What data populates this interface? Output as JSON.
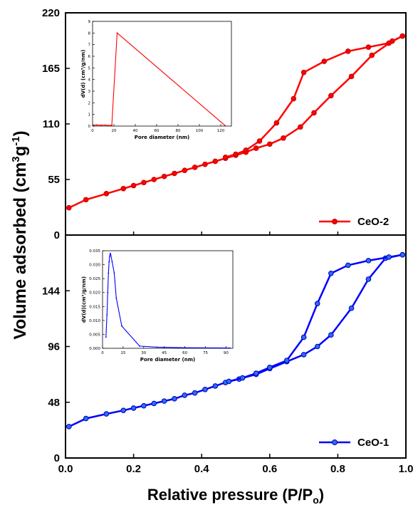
{
  "chart_data": {
    "type": "line",
    "xlabel": "Relative pressure (P/P",
    "xlabel_sub": "o",
    "xlabel_end": ")",
    "ylabel": "Volume adsorbed (cm",
    "ylabel_sup1": "3",
    "ylabel_mid": "g",
    "ylabel_sup2": "-1",
    "ylabel_end": ")",
    "x_ticks": [
      "0.0",
      "0.2",
      "0.4",
      "0.6",
      "0.8",
      "1.0"
    ],
    "xlim": [
      0,
      1.0
    ],
    "panels": [
      {
        "id": "top",
        "legend": "CeO-2",
        "color": "#ff0000",
        "ylim": [
          0,
          220
        ],
        "y_ticks": [
          "0",
          "55",
          "110",
          "165",
          "220"
        ],
        "series": [
          {
            "x": [
              0.01,
              0.06,
              0.12,
              0.17,
              0.2,
              0.23,
              0.26,
              0.29,
              0.32,
              0.35,
              0.38,
              0.41,
              0.44,
              0.47,
              0.5,
              0.53,
              0.56,
              0.6,
              0.64,
              0.69,
              0.73,
              0.78,
              0.84,
              0.9,
              0.96,
              0.99
            ],
            "y": [
              27,
              35,
              41,
              46,
              49,
              52,
              55,
              58,
              61,
              64,
              67,
              70,
              73,
              76,
              79,
              82,
              86,
              90,
              96,
              107,
              121,
              138,
              157,
              178,
              192,
              197
            ]
          },
          {
            "x": [
              0.99,
              0.95,
              0.89,
              0.83,
              0.76,
              0.7,
              0.67,
              0.62,
              0.57,
              0.53,
              0.5,
              0.47
            ],
            "y": [
              197,
              190,
              186,
              182,
              172,
              161,
              135,
              111,
              93,
              84,
              80,
              77
            ]
          }
        ],
        "inset": {
          "xlabel": "Pore diameter (nm)",
          "ylabel": "dV(d) (cm³/g/nm)",
          "xlim": [
            0,
            130
          ],
          "ylim": [
            0,
            9
          ],
          "x_ticks": [
            "0",
            "20",
            "40",
            "60",
            "80",
            "100",
            "120"
          ],
          "y_ticks": [
            "0",
            "1",
            "2",
            "3",
            "4",
            "5",
            "6",
            "7",
            "8",
            "9"
          ],
          "x": [
            1,
            4,
            8,
            12,
            15,
            17,
            18,
            23,
            124
          ],
          "y": [
            0.08,
            0.1,
            0.08,
            0.09,
            0.05,
            0.06,
            0.06,
            8.0,
            0.05
          ]
        }
      },
      {
        "id": "bottom",
        "legend": "CeO-1",
        "color": "#0000ff",
        "ylim": [
          0,
          192
        ],
        "y_ticks": [
          "0",
          "48",
          "96",
          "144"
        ],
        "series": [
          {
            "x": [
              0.01,
              0.06,
              0.12,
              0.17,
              0.2,
              0.23,
              0.26,
              0.29,
              0.32,
              0.35,
              0.38,
              0.41,
              0.44,
              0.47,
              0.51,
              0.56,
              0.6,
              0.65,
              0.7,
              0.74,
              0.78,
              0.84,
              0.89,
              0.94,
              0.99
            ],
            "y": [
              27,
              34,
              38,
              41,
              43,
              45,
              47,
              49,
              51,
              54,
              56,
              59,
              62,
              65,
              68,
              72,
              77,
              83,
              89,
              96,
              106,
              129,
              154,
              172,
              175
            ]
          },
          {
            "x": [
              0.99,
              0.95,
              0.89,
              0.83,
              0.78,
              0.74,
              0.7,
              0.65,
              0.6,
              0.56,
              0.52,
              0.48
            ],
            "y": [
              175,
              173,
              170,
              166,
              159,
              133,
              104,
              84,
              78,
              73,
              69,
              66
            ]
          }
        ],
        "inset": {
          "xlabel": "Pore diameter (nm)",
          "ylabel": "dV(d)(cm³/g/nm)",
          "xlim": [
            0,
            95
          ],
          "ylim": [
            0,
            0.035
          ],
          "x_ticks": [
            "0",
            "15",
            "30",
            "45",
            "60",
            "75",
            "90"
          ],
          "y_ticks": [
            "0.000",
            "0.005",
            "0.010",
            "0.015",
            "0.020",
            "0.025",
            "0.030",
            "0.035"
          ],
          "x": [
            2.5,
            3.2,
            3.8,
            4.3,
            4.8,
            5.2,
            5.6,
            6.0,
            7.0,
            8.5,
            10,
            14,
            27,
            40,
            60,
            93
          ],
          "y": [
            0.004,
            0.012,
            0.02,
            0.027,
            0.031,
            0.033,
            0.034,
            0.0335,
            0.031,
            0.027,
            0.018,
            0.008,
            0.0008,
            0.0004,
            0.0002,
            0.0001
          ]
        }
      }
    ]
  }
}
